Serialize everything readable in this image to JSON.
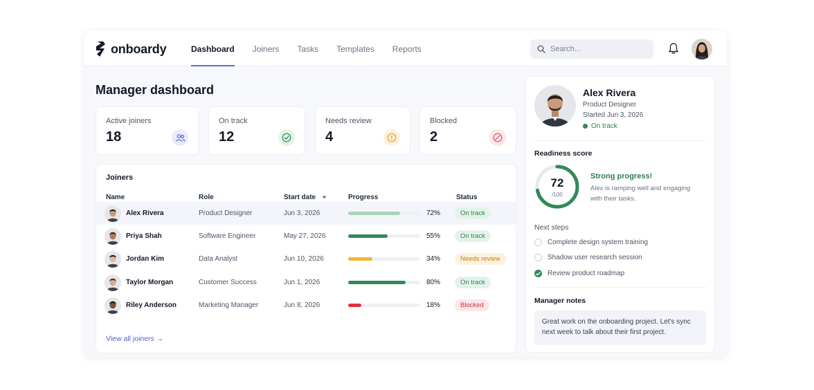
{
  "app": {
    "name": "onboardy"
  },
  "nav": {
    "tabs": [
      {
        "label": "Dashboard",
        "active": true
      },
      {
        "label": "Joiners"
      },
      {
        "label": "Tasks"
      },
      {
        "label": "Templates"
      },
      {
        "label": "Reports"
      }
    ]
  },
  "search": {
    "placeholder": "Search..."
  },
  "page": {
    "title": "Manager dashboard"
  },
  "kpis": [
    {
      "label": "Active joiners",
      "value": "18",
      "icon": "people-icon",
      "color": "#5b67d8",
      "bg": "#e9ebfb"
    },
    {
      "label": "On track",
      "value": "12",
      "icon": "check-circle-icon",
      "color": "#2f8a57",
      "bg": "#e3f3ea"
    },
    {
      "label": "Needs review",
      "value": "4",
      "icon": "alert-circle-icon",
      "color": "#e0a12a",
      "bg": "#fdf1dc"
    },
    {
      "label": "Blocked",
      "value": "2",
      "icon": "blocked-circle-icon",
      "color": "#e05263",
      "bg": "#fce6e8"
    }
  ],
  "joiners": {
    "title": "Joiners",
    "columns": {
      "name": "Name",
      "role": "Role",
      "start": "Start date",
      "progress": "Progress",
      "status": "Status"
    },
    "rows": [
      {
        "name": "Alex Rivera",
        "role": "Product Designer",
        "start": "Jun 3, 2026",
        "progress": 72,
        "pct": "72%",
        "status": "On track",
        "bar": "#a9d3b9",
        "badge_bg": "#e3f3ea",
        "badge_fg": "#2f7d52",
        "skin": "#c99b7c",
        "hair": "#2a1d16"
      },
      {
        "name": "Priya Shah",
        "role": "Software Engineer",
        "start": "May 27, 2026",
        "progress": 55,
        "pct": "55%",
        "status": "On track",
        "bar": "#2f8a57",
        "badge_bg": "#e3f3ea",
        "badge_fg": "#2f7d52",
        "skin": "#b07a5c",
        "hair": "#3b2418"
      },
      {
        "name": "Jordan Kim",
        "role": "Data Analyst",
        "start": "Jun 10, 2026",
        "progress": 34,
        "pct": "34%",
        "status": "Needs review",
        "bar": "#f5b532",
        "badge_bg": "#fdf1dc",
        "badge_fg": "#c07f12",
        "skin": "#e0b99a",
        "hair": "#201a17"
      },
      {
        "name": "Taylor Morgan",
        "role": "Customer Success",
        "start": "Jun 1, 2026",
        "progress": 80,
        "pct": "80%",
        "status": "On track",
        "bar": "#2f8a57",
        "badge_bg": "#e3f3ea",
        "badge_fg": "#2f7d52",
        "skin": "#d8ab8c",
        "hair": "#4a2e20"
      },
      {
        "name": "Riley Anderson",
        "role": "Marketing Manager",
        "start": "Jun 8, 2026",
        "progress": 18,
        "pct": "18%",
        "status": "Blocked",
        "bar": "#e0323f",
        "badge_bg": "#fce6e8",
        "badge_fg": "#c8323f",
        "skin": "#7b5138",
        "hair": "#1b1410"
      }
    ],
    "view_all": "View all joiners →"
  },
  "profile": {
    "name": "Alex Rivera",
    "role": "Product Designer",
    "started": "Started Jun 3, 2026",
    "status": "On track"
  },
  "readiness": {
    "title": "Readiness score",
    "score": 72,
    "score_label": "72",
    "max_label": "/100",
    "headline": "Strong progress!",
    "desc": "Alex is ramping well and engaging with their tasks."
  },
  "steps": {
    "title": "Next steps",
    "items": [
      {
        "label": "Complete design system training",
        "done": false
      },
      {
        "label": "Shadow user research session",
        "done": false
      },
      {
        "label": "Review product roadmap",
        "done": true
      }
    ]
  },
  "notes": {
    "title": "Manager notes",
    "text": "Great work on the onboarding project. Let's sync next week to talk about their first project."
  }
}
